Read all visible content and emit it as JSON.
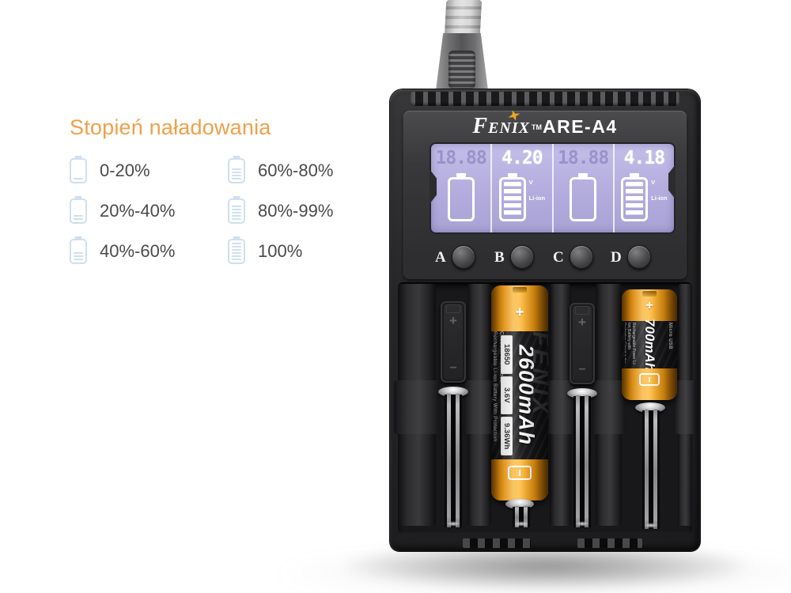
{
  "legend": {
    "title": "Stopień naładowania",
    "items": [
      {
        "label": "0-20%",
        "bars": 1
      },
      {
        "label": "20%-40%",
        "bars": 2
      },
      {
        "label": "40%-60%",
        "bars": 3
      },
      {
        "label": "60%-80%",
        "bars": 4
      },
      {
        "label": "80%-99%",
        "bars": 5
      },
      {
        "label": "100%",
        "bars": 6
      }
    ],
    "colors": {
      "title": "#efa04a",
      "text": "#4a4a4a",
      "icon": "#cfe0ee"
    }
  },
  "charger": {
    "brand": "Fenix",
    "trademark": "TM",
    "model": "ARE-A4",
    "buttons": [
      "A",
      "B",
      "C",
      "D"
    ],
    "lcd": {
      "channels": [
        {
          "value": "18.88",
          "state": "ghost"
        },
        {
          "value": "4.20",
          "unit": "V",
          "chemistry": "Li-ion",
          "state": "active"
        },
        {
          "value": "18.88",
          "state": "ghost"
        },
        {
          "value": "4.18",
          "unit": "V",
          "chemistry": "Li-ion",
          "state": "active"
        }
      ],
      "colors": {
        "background": "#b3acdd",
        "segments": "#ffffff",
        "ghost": "#9a92c9"
      }
    },
    "slot_marks": {
      "plus": "+",
      "minus": "−"
    },
    "colors": {
      "body": "#232325",
      "accent_orange": "#f2a51e"
    }
  },
  "batteries": {
    "slot2": {
      "plus": "+",
      "capacity": "2600mAh",
      "model": "18650",
      "voltage": "3.6V",
      "energy": "9.36Wh",
      "description_line1": "Rechargeable Li-ion Battery With Protection",
      "description_line2": "Circuit In The Anode",
      "watermark": "FENIX"
    },
    "slot4": {
      "plus": "+",
      "capacity": "700mAh",
      "description": "Rechargeable Power Li-ion Battery with Protection Circuit in the Anode",
      "port": "Micro USB"
    }
  }
}
